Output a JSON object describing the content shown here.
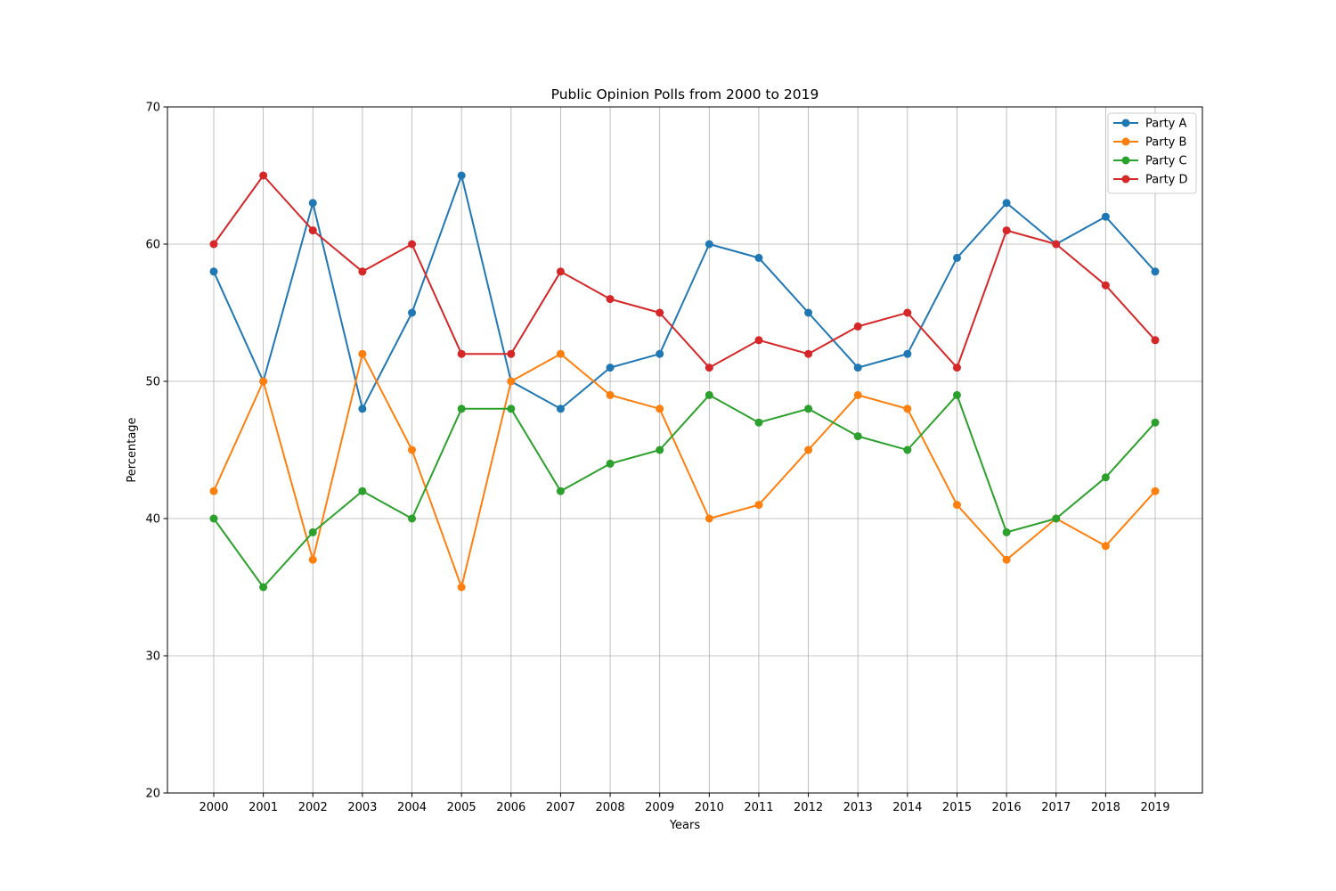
{
  "chart_data": {
    "type": "line",
    "title": "Public Opinion Polls from 2000 to 2019",
    "xlabel": "Years",
    "ylabel": "Percentage",
    "x": [
      "2000",
      "2001",
      "2002",
      "2003",
      "2004",
      "2005",
      "2006",
      "2007",
      "2008",
      "2009",
      "2010",
      "2011",
      "2012",
      "2013",
      "2014",
      "2015",
      "2016",
      "2017",
      "2018",
      "2019"
    ],
    "ylim": [
      20,
      70
    ],
    "yticks": [
      20,
      30,
      40,
      50,
      60,
      70
    ],
    "grid": true,
    "legend_position": "top-right",
    "series": [
      {
        "name": "Party A",
        "color": "#1f77b4",
        "values": [
          58,
          50,
          63,
          48,
          55,
          65,
          50,
          48,
          51,
          52,
          60,
          59,
          55,
          51,
          52,
          59,
          63,
          60,
          62,
          58
        ]
      },
      {
        "name": "Party B",
        "color": "#ff7f0e",
        "values": [
          42,
          50,
          37,
          52,
          45,
          35,
          50,
          52,
          49,
          48,
          40,
          41,
          45,
          49,
          48,
          41,
          37,
          40,
          38,
          42
        ]
      },
      {
        "name": "Party C",
        "color": "#2ca02c",
        "values": [
          40,
          35,
          39,
          42,
          40,
          48,
          48,
          42,
          44,
          45,
          49,
          47,
          48,
          46,
          45,
          49,
          39,
          40,
          43,
          47
        ]
      },
      {
        "name": "Party D",
        "color": "#d62728",
        "values": [
          60,
          65,
          61,
          58,
          60,
          52,
          52,
          58,
          56,
          55,
          51,
          53,
          52,
          54,
          55,
          51,
          61,
          60,
          57,
          53
        ]
      }
    ]
  }
}
